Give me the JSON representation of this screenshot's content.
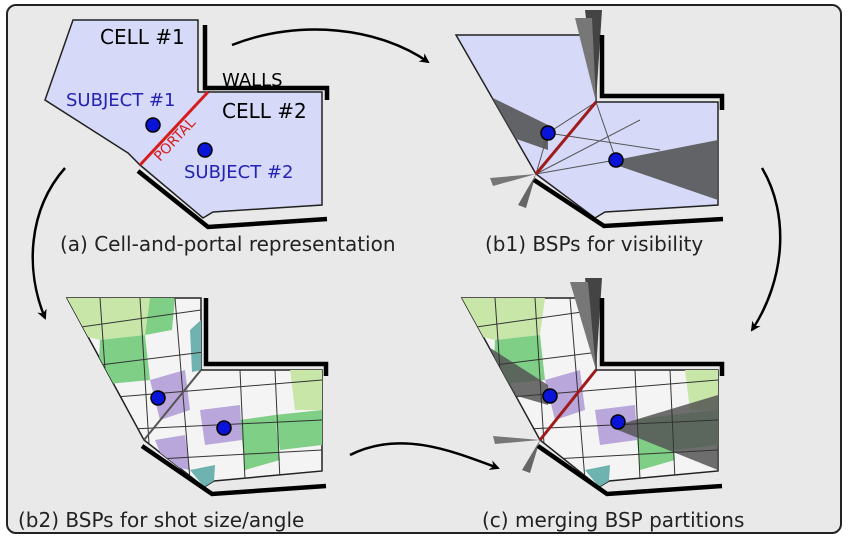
{
  "panels": {
    "a": {
      "caption": "(a) Cell-and-portal representation",
      "cell1": "CELL #1",
      "cell2": "CELL #2",
      "walls": "WALLS",
      "subject1": "SUBJECT #1",
      "subject2": "SUBJECT #2",
      "portal": "PORTAL"
    },
    "b1": {
      "caption": "(b1) BSPs for visibility"
    },
    "b2": {
      "caption": "(b2) BSPs for shot size/angle"
    },
    "c": {
      "caption": "(c) merging BSP partitions"
    }
  },
  "colors": {
    "cell_fill": "#d6d9f7",
    "subject_text": "#2323b4",
    "portal": "#d61d1d",
    "subject_dot": "#0a14d8",
    "wall": "#000000",
    "shadow": "#505050",
    "green": "#7fcf86",
    "lightgreen": "#c8e6a8",
    "purple": "#b9a6da",
    "teal": "#6fb3b0",
    "background": "#e9e9e9"
  }
}
